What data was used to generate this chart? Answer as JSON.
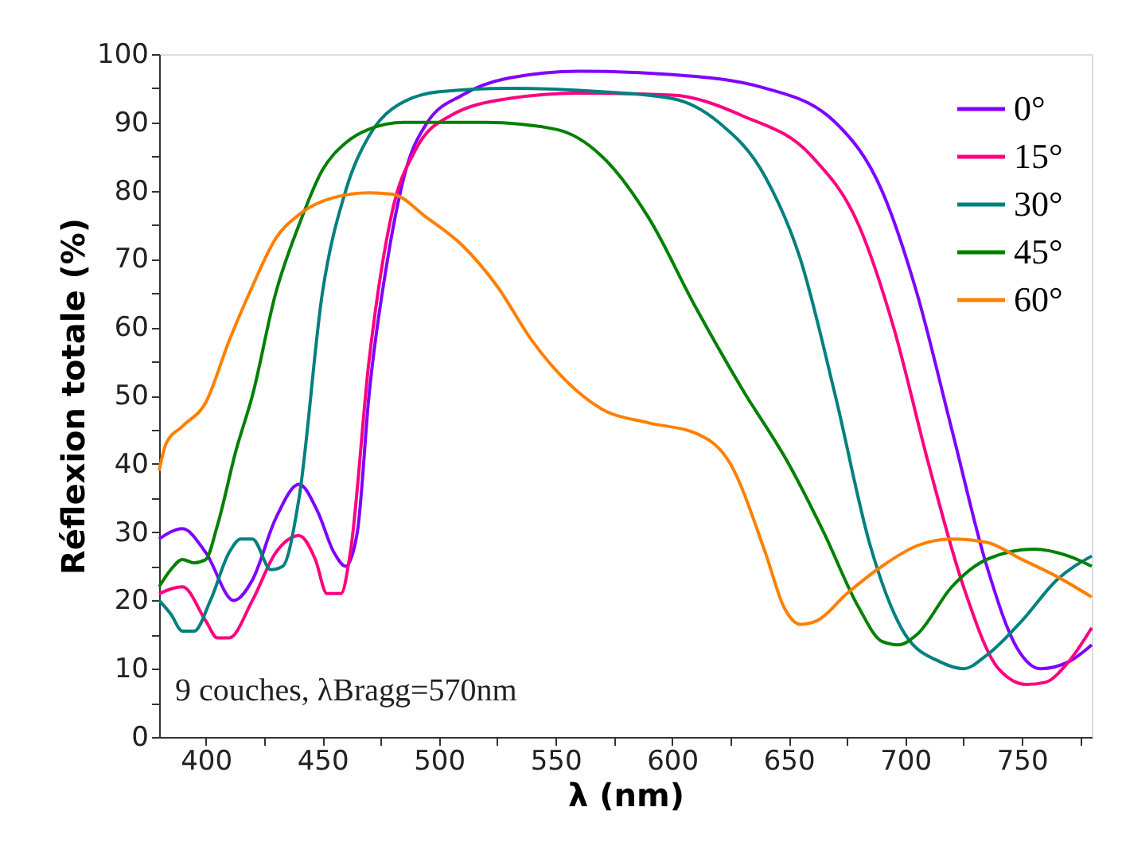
{
  "chart_data": {
    "type": "line",
    "xlabel": "λ (nm)",
    "ylabel": "Réflexion totale (%)",
    "xlim": [
      380,
      780
    ],
    "ylim": [
      0,
      100
    ],
    "xticks": [
      400,
      {
        "value": 425,
        "label": null
      },
      450,
      {
        "value": 475,
        "label": null
      },
      500,
      {
        "value": 525,
        "label": null
      },
      550,
      {
        "value": 575,
        "label": null
      },
      600,
      {
        "value": 625,
        "label": null
      },
      650,
      {
        "value": 675,
        "label": null
      },
      700,
      {
        "value": 725,
        "label": null
      },
      750,
      {
        "value": 775,
        "label": null
      }
    ],
    "yticks": [
      0,
      {
        "value": 5,
        "label": null
      },
      10,
      {
        "value": 15,
        "label": null
      },
      20,
      {
        "value": 25,
        "label": null
      },
      30,
      {
        "value": 35,
        "label": null
      },
      40,
      {
        "value": 45,
        "label": null
      },
      50,
      {
        "value": 55,
        "label": null
      },
      60,
      {
        "value": 65,
        "label": null
      },
      70,
      {
        "value": 75,
        "label": null
      },
      80,
      {
        "value": 85,
        "label": null
      },
      90,
      {
        "value": 95,
        "label": null
      },
      100
    ],
    "grid": false,
    "legend": "top right",
    "line_style": "solid",
    "marker": "none",
    "annotations": [
      "9 couches, λBragg=570nm"
    ],
    "series": [
      {
        "name": "0°",
        "color": "#8000ff",
        "x": [
          380,
          390,
          400,
          412,
          420,
          430,
          440,
          448,
          455,
          460,
          465,
          470,
          478,
          485,
          495,
          510,
          530,
          560,
          600,
          640,
          670,
          690,
          705,
          720,
          735,
          748,
          758,
          770,
          780
        ],
        "values": [
          29,
          30.5,
          27,
          20,
          23,
          32,
          37,
          33,
          27,
          25,
          30,
          50,
          70,
          82,
          90,
          94,
          96.5,
          97.5,
          97,
          95,
          90,
          80,
          65,
          45,
          25,
          13,
          10,
          11,
          13.5
        ]
      },
      {
        "name": "15°",
        "color": "#ff0080",
        "x": [
          380,
          390,
          400,
          405,
          410,
          420,
          430,
          440,
          447,
          452,
          458,
          462,
          470,
          480,
          490,
          505,
          530,
          560,
          600,
          630,
          660,
          680,
          695,
          710,
          725,
          740,
          752,
          760,
          770,
          780
        ],
        "values": [
          21,
          22,
          17,
          14.5,
          14.5,
          20,
          27,
          29.5,
          26,
          21,
          21,
          27,
          55,
          77,
          86,
          91,
          93.5,
          94.3,
          94,
          91,
          85,
          75,
          60,
          40,
          22,
          10,
          7.7,
          8,
          11,
          16
        ]
      },
      {
        "name": "30°",
        "color": "#008080",
        "x": [
          380,
          385,
          390,
          395,
          402,
          410,
          415,
          420,
          428,
          433,
          440,
          450,
          460,
          470,
          480,
          500,
          530,
          570,
          600,
          620,
          640,
          655,
          670,
          685,
          700,
          715,
          725,
          735,
          750,
          765,
          780
        ],
        "values": [
          20,
          18,
          15.5,
          15.5,
          20,
          27,
          29,
          29,
          24.5,
          25,
          35,
          65,
          80,
          88,
          92,
          94.5,
          95,
          94.5,
          93.5,
          90,
          82,
          70,
          50,
          28,
          15,
          11,
          10,
          12,
          17,
          23,
          26.5
        ]
      },
      {
        "name": "45°",
        "color": "#008000",
        "x": [
          380,
          385,
          390,
          395,
          400,
          405,
          413,
          420,
          430,
          440,
          450,
          460,
          470,
          485,
          520,
          550,
          570,
          590,
          610,
          630,
          650,
          665,
          680,
          690,
          697,
          705,
          720,
          735,
          755,
          770,
          780
        ],
        "values": [
          22,
          24.5,
          26,
          25.5,
          26,
          31,
          42,
          50,
          65,
          75,
          83,
          87,
          89,
          90,
          90,
          89,
          85,
          76,
          63,
          51,
          40,
          30,
          19,
          14,
          13.5,
          15,
          22,
          26,
          27.5,
          26.5,
          25
        ]
      },
      {
        "name": "60°",
        "color": "#ff8000",
        "x": [
          380,
          383,
          390,
          400,
          410,
          420,
          430,
          440,
          455,
          470,
          480,
          495,
          510,
          525,
          540,
          555,
          570,
          590,
          610,
          625,
          640,
          648,
          655,
          662,
          675,
          690,
          705,
          720,
          735,
          750,
          765,
          780
        ],
        "values": [
          39,
          43,
          45.5,
          49,
          58,
          66,
          73,
          76.5,
          79,
          79.7,
          79.5,
          76,
          72,
          66,
          58,
          52,
          48,
          46,
          44.5,
          40,
          27,
          19,
          16.5,
          17,
          21,
          25,
          28,
          29,
          28.5,
          26,
          23.5,
          20.5
        ]
      }
    ]
  }
}
